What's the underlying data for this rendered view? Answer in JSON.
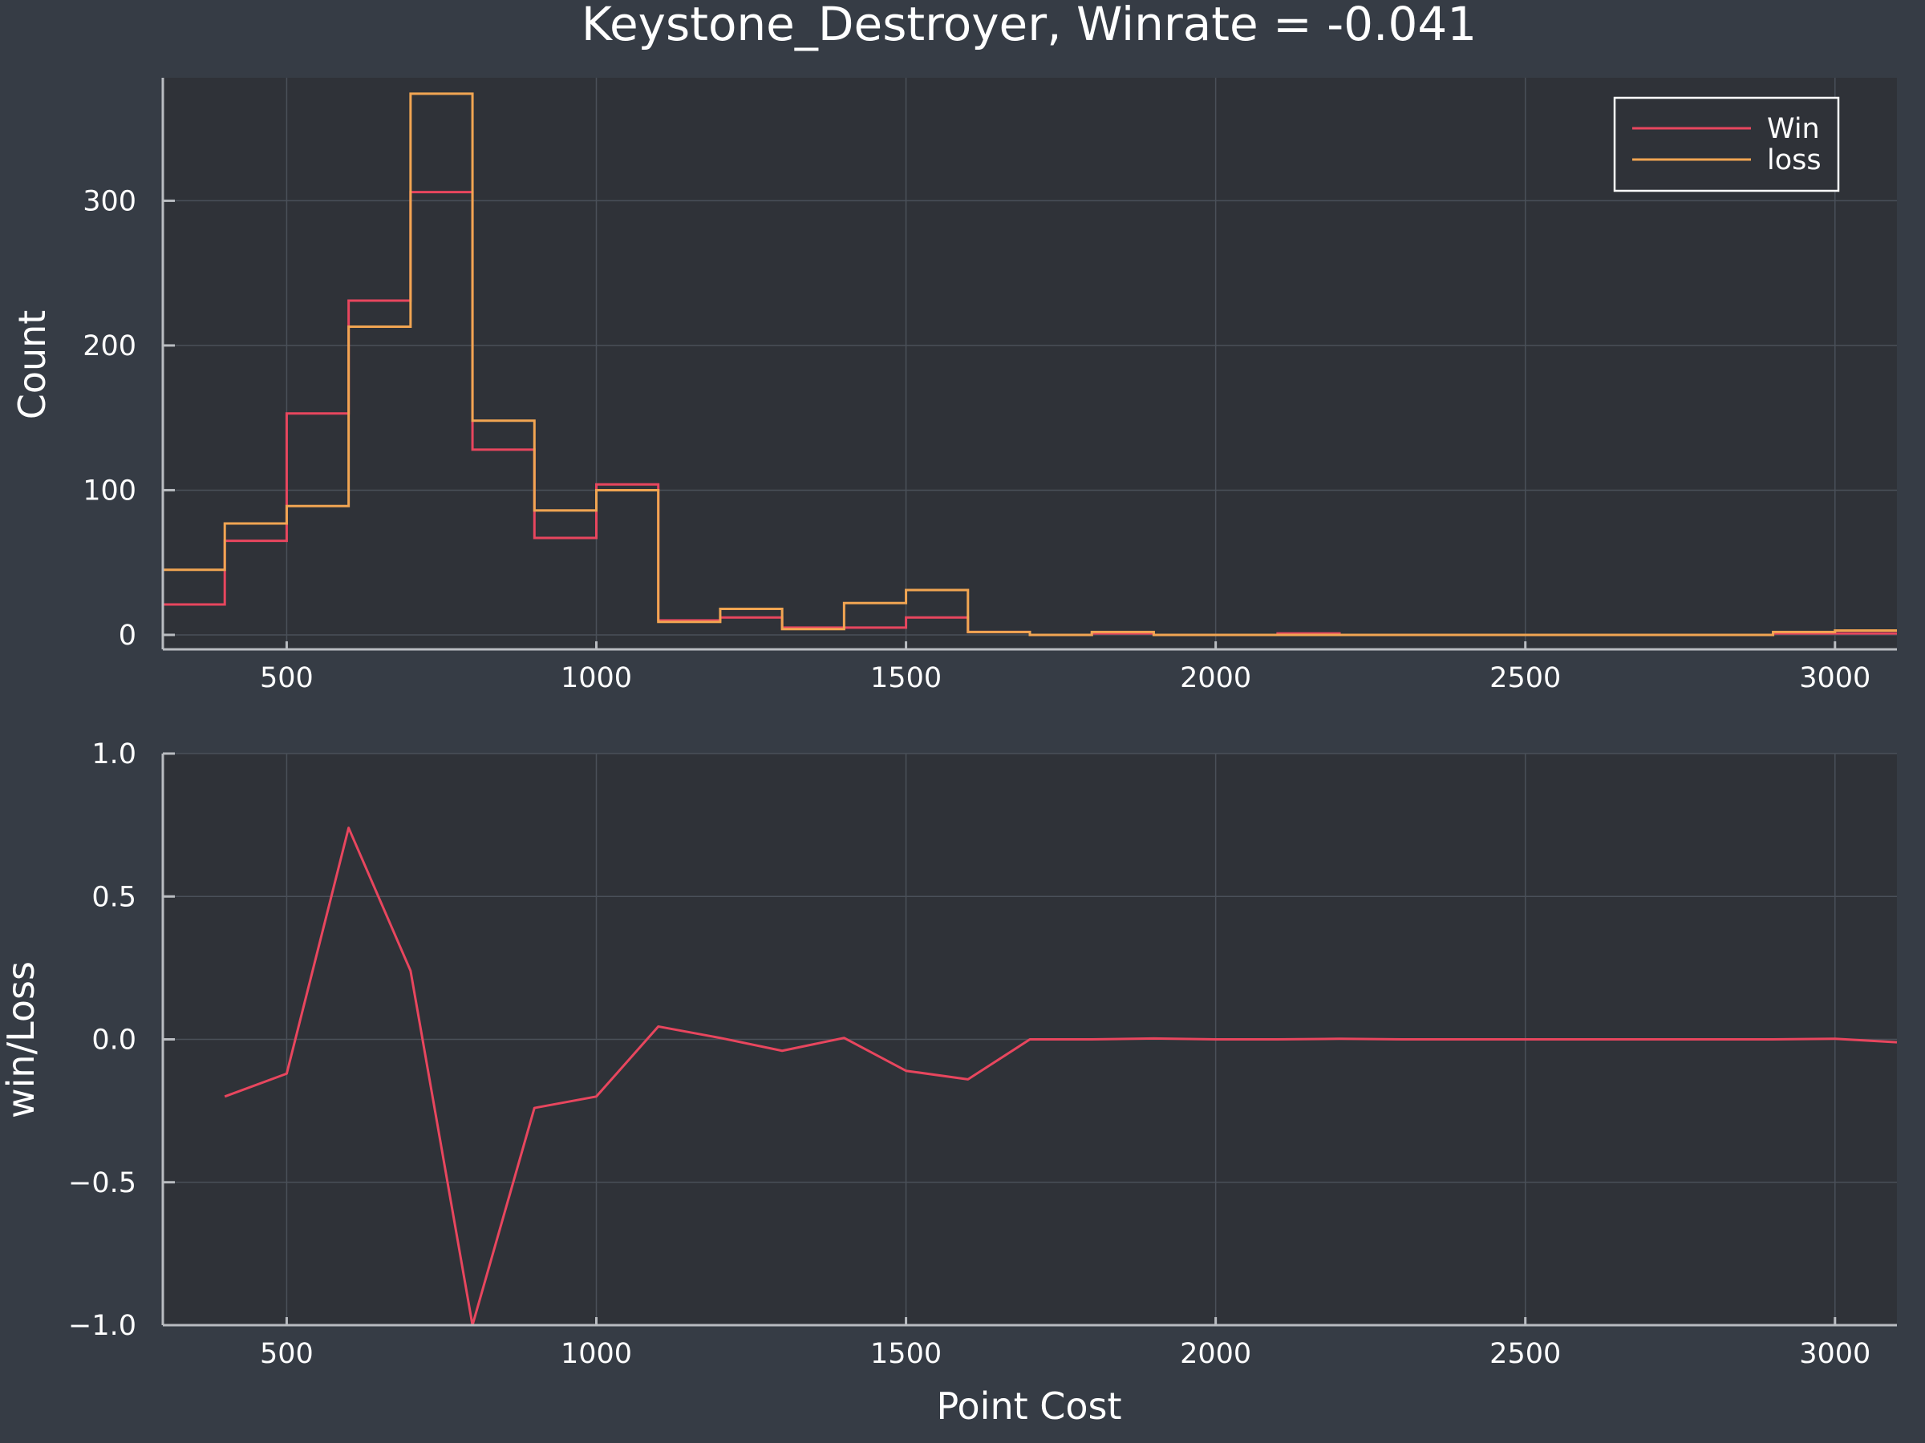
{
  "figure": {
    "title": "Keystone_Destroyer, Winrate = -0.041",
    "background": "#363c45",
    "plot_background": "#2f3238",
    "grid_color": "#4a5059",
    "axis_color": "#b9bcc1",
    "text_color": "#ffffff"
  },
  "chart_data": [
    {
      "type": "step-histogram",
      "xlabel": "",
      "ylabel": "Count",
      "xlim": [
        300,
        3100
      ],
      "ylim": [
        -10,
        385
      ],
      "xticks": [
        500,
        1000,
        1500,
        2000,
        2500,
        3000
      ],
      "yticks": [
        0,
        100,
        200,
        300
      ],
      "grid": true,
      "legend": {
        "position": "top-right",
        "entries": [
          "Win",
          "loss"
        ]
      },
      "bin_edges": [
        300,
        400,
        500,
        600,
        700,
        800,
        900,
        1000,
        1100,
        1200,
        1300,
        1400,
        1500,
        1600,
        1700,
        1800,
        1900,
        2000,
        2100,
        2200,
        2300,
        2400,
        2500,
        2600,
        2700,
        2800,
        2900,
        3000,
        3100
      ],
      "series": [
        {
          "name": "Win",
          "color": "#e8465e",
          "values": [
            21,
            65,
            153,
            231,
            306,
            128,
            67,
            104,
            10,
            12,
            5,
            5,
            12,
            2,
            0,
            1,
            0,
            0,
            1,
            0,
            0,
            0,
            0,
            0,
            0,
            0,
            1,
            1
          ]
        },
        {
          "name": "loss",
          "color": "#f1a552",
          "values": [
            45,
            77,
            89,
            213,
            374,
            148,
            86,
            100,
            9,
            18,
            4,
            22,
            31,
            2,
            0,
            2,
            0,
            0,
            0,
            0,
            0,
            0,
            0,
            0,
            0,
            0,
            2,
            3
          ]
        }
      ]
    },
    {
      "type": "line",
      "xlabel": "Point Cost",
      "ylabel": "win/Loss",
      "xlim": [
        300,
        3100
      ],
      "ylim": [
        -1.0,
        1.0
      ],
      "xticks": [
        500,
        1000,
        1500,
        2000,
        2500,
        3000
      ],
      "yticks": [
        1.0,
        0.5,
        0.0,
        -0.5,
        -1.0
      ],
      "ytick_labels": [
        "1.0",
        "0.5",
        "0.0",
        "−0.5",
        "−1.0"
      ],
      "grid": true,
      "series": [
        {
          "color": "#e8465e",
          "x": [
            400,
            500,
            600,
            700,
            800,
            900,
            1000,
            1100,
            1200,
            1300,
            1400,
            1500,
            1600,
            1700,
            1800,
            1900,
            2000,
            2100,
            2200,
            2300,
            2400,
            2500,
            2600,
            2700,
            2800,
            2900,
            3000,
            3100
          ],
          "y": [
            -0.2,
            -0.12,
            0.74,
            0.24,
            -1.0,
            -0.24,
            -0.2,
            0.045,
            0.005,
            -0.04,
            0.005,
            -0.11,
            -0.14,
            0.0,
            0.0,
            0.003,
            0.0,
            0.0,
            0.002,
            0.0,
            0.0,
            0.0,
            0.0,
            0.0,
            0.0,
            0.0,
            0.002,
            -0.01
          ]
        }
      ]
    }
  ]
}
